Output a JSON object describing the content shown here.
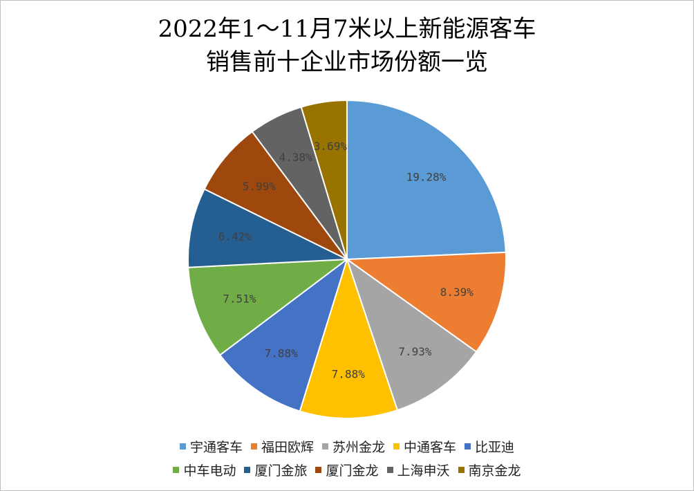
{
  "chart_data": {
    "type": "pie",
    "title": "2022年1～11月7米以上新能源客车销售前十企业市场份额一览",
    "title_lines": [
      "2022年1～11月7米以上新能源客车",
      "销售前十企业市场份额一览"
    ],
    "categories": [
      "宇通客车",
      "福田欧辉",
      "苏州金龙",
      "中通客车",
      "比亚迪",
      "中车电动",
      "厦门金旅",
      "厦门金龙",
      "上海申沃",
      "南京金龙"
    ],
    "values": [
      19.28,
      8.39,
      7.93,
      7.88,
      7.88,
      7.51,
      6.42,
      5.99,
      4.38,
      3.69
    ],
    "labels": [
      "19.28%",
      "8.39%",
      "7.93%",
      "7.88%",
      "7.88%",
      "7.51%",
      "6.42%",
      "5.99%",
      "4.38%",
      "3.69%"
    ],
    "colors": [
      "#5b9bd5",
      "#ed7d31",
      "#a5a5a5",
      "#ffc000",
      "#4472c4",
      "#70ad47",
      "#255e91",
      "#9e480e",
      "#636363",
      "#997300"
    ],
    "legend_position": "bottom"
  }
}
